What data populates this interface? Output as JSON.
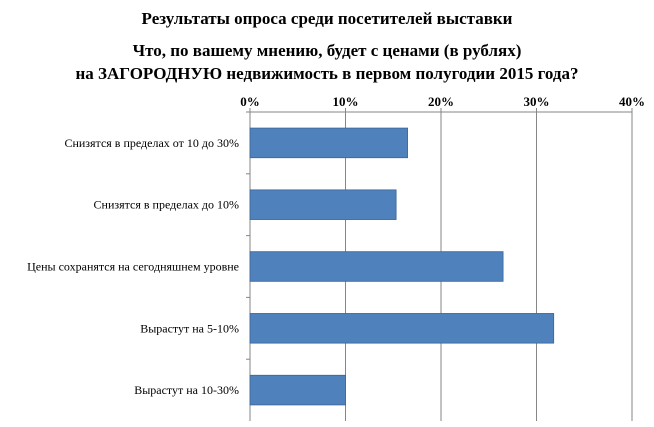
{
  "chart_data": {
    "type": "bar",
    "orientation": "horizontal",
    "title_lines": [
      "Результаты опроса среди посетителей выставки",
      "Что, по вашему мнению, будет с ценами (в рублях)",
      "на ЗАГОРОДНУЮ недвижимость в первом полугодии 2015 года?"
    ],
    "categories": [
      "Снизятся в пределах от 10 до 30%",
      "Снизятся в пределах до 10%",
      "Цены сохранятся на сегодняшнем уровне",
      "Вырастут на 5-10%",
      "Вырастут на 10-30%"
    ],
    "values": [
      16.5,
      15.3,
      26.5,
      31.8,
      10.0
    ],
    "xlim": [
      0,
      40
    ],
    "x_ticks": [
      "0%",
      "10%",
      "20%",
      "30%",
      "40%"
    ],
    "x_axis_position": "top",
    "grid": true,
    "bar_color": "#4f81bd",
    "bar_edge_color": "#3a6694",
    "gridline_color": "#868686"
  }
}
